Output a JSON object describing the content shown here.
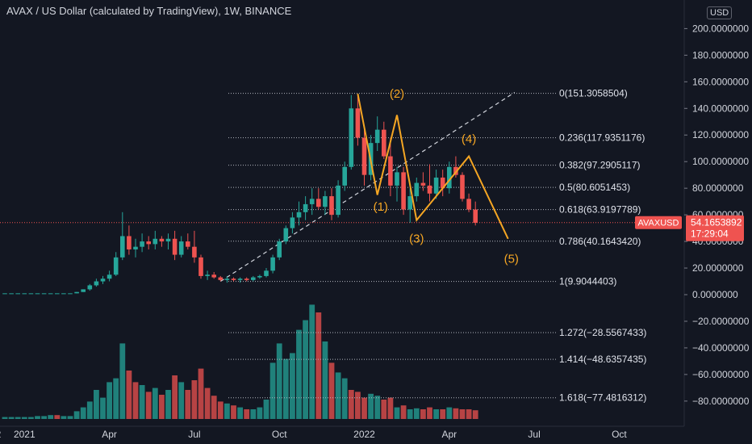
{
  "header": {
    "title": "AVAX / US Dollar (calculated by TradingView), 1W, BINANCE",
    "currency": "USD"
  },
  "price_tag": {
    "symbol": "AVAXUSD",
    "price": "54.1653892",
    "timer": "17:29:04"
  },
  "colors": {
    "bg": "#131722",
    "up": "#26a69a",
    "down": "#ef5350",
    "fib": "#b2b5be",
    "wave": "#f5a623",
    "vol_up": "#26a69a",
    "vol_down": "#ef5350"
  },
  "chart_data": {
    "type": "candlestick",
    "title": "AVAX / US Dollar (calculated by TradingView), 1W, BINANCE",
    "y_ticks": [
      200,
      180,
      160,
      140,
      120,
      100,
      80,
      60,
      40,
      20,
      0,
      -20,
      -40,
      -60,
      -80
    ],
    "y_tick_labels": [
      "200.0000000",
      "180.0000000",
      "160.0000000",
      "140.0000000",
      "120.0000000",
      "100.0000000",
      "80.0000000",
      "60.0000000",
      "40.0000000",
      "20.0000000",
      "0.0000000",
      "−20.0000000",
      "−40.0000000",
      "−60.0000000",
      "−80.0000000"
    ],
    "ylim": [
      -88,
      205
    ],
    "x_ticks": [
      {
        "label": "2",
        "week": -1
      },
      {
        "label": "2021",
        "week": 3
      },
      {
        "label": "Apr",
        "week": 16
      },
      {
        "label": "Jul",
        "week": 29
      },
      {
        "label": "Oct",
        "week": 42
      },
      {
        "label": "2022",
        "week": 55
      },
      {
        "label": "Apr",
        "week": 68
      },
      {
        "label": "Jul",
        "week": 81
      },
      {
        "label": "Oct",
        "week": 94
      }
    ],
    "candles": [
      [
        1,
        1,
        1,
        1
      ],
      [
        1,
        1,
        1,
        1
      ],
      [
        1,
        1,
        1,
        1
      ],
      [
        1,
        1,
        1,
        1
      ],
      [
        1,
        1,
        1,
        1
      ],
      [
        1,
        1,
        1,
        1
      ],
      [
        1,
        1,
        1,
        1
      ],
      [
        1,
        1,
        1,
        1
      ],
      [
        1,
        1,
        1,
        1
      ],
      [
        1,
        1,
        1,
        1
      ],
      [
        1,
        1,
        1,
        1
      ],
      [
        1,
        2,
        1,
        2
      ],
      [
        2,
        4,
        2,
        4
      ],
      [
        4,
        8,
        3,
        7
      ],
      [
        7,
        12,
        6,
        10
      ],
      [
        10,
        14,
        8,
        12
      ],
      [
        12,
        18,
        10,
        15
      ],
      [
        15,
        32,
        14,
        28
      ],
      [
        28,
        62,
        26,
        44
      ],
      [
        44,
        52,
        30,
        34
      ],
      [
        34,
        42,
        28,
        36
      ],
      [
        36,
        46,
        32,
        40
      ],
      [
        40,
        44,
        34,
        38
      ],
      [
        38,
        48,
        34,
        42
      ],
      [
        42,
        44,
        36,
        40
      ],
      [
        40,
        46,
        34,
        42
      ],
      [
        42,
        48,
        26,
        30
      ],
      [
        30,
        44,
        28,
        40
      ],
      [
        40,
        46,
        34,
        36
      ],
      [
        36,
        48,
        24,
        28
      ],
      [
        28,
        30,
        12,
        14
      ],
      [
        14,
        18,
        11,
        15
      ],
      [
        15,
        17,
        12,
        13
      ],
      [
        13,
        14,
        10,
        11
      ],
      [
        11,
        14,
        9,
        12
      ],
      [
        12,
        13,
        10,
        11
      ],
      [
        11,
        13,
        9,
        12
      ],
      [
        12,
        13,
        10,
        11
      ],
      [
        11,
        14,
        10,
        13
      ],
      [
        13,
        15,
        12,
        14
      ],
      [
        14,
        20,
        13,
        18
      ],
      [
        18,
        30,
        16,
        28
      ],
      [
        28,
        42,
        26,
        40
      ],
      [
        40,
        52,
        38,
        50
      ],
      [
        50,
        62,
        46,
        58
      ],
      [
        58,
        70,
        52,
        62
      ],
      [
        62,
        74,
        56,
        68
      ],
      [
        68,
        80,
        60,
        72
      ],
      [
        72,
        80,
        64,
        66
      ],
      [
        66,
        78,
        60,
        74
      ],
      [
        74,
        80,
        56,
        60
      ],
      [
        60,
        86,
        58,
        82
      ],
      [
        82,
        100,
        78,
        96
      ],
      [
        96,
        150,
        94,
        140
      ],
      [
        140,
        150,
        112,
        118
      ],
      [
        118,
        126,
        82,
        90
      ],
      [
        90,
        120,
        86,
        114
      ],
      [
        114,
        134,
        108,
        124
      ],
      [
        124,
        130,
        102,
        104
      ],
      [
        104,
        118,
        74,
        82
      ],
      [
        82,
        96,
        70,
        92
      ],
      [
        92,
        96,
        60,
        64
      ],
      [
        64,
        80,
        54,
        74
      ],
      [
        74,
        88,
        70,
        84
      ],
      [
        84,
        92,
        78,
        82
      ],
      [
        82,
        98,
        70,
        76
      ],
      [
        76,
        94,
        72,
        88
      ],
      [
        88,
        94,
        74,
        80
      ],
      [
        80,
        100,
        76,
        96
      ],
      [
        96,
        104,
        88,
        90
      ],
      [
        90,
        92,
        70,
        72
      ],
      [
        72,
        76,
        62,
        64
      ],
      [
        64,
        70,
        52,
        54
      ]
    ],
    "volume": [
      [
        2,
        "up"
      ],
      [
        2,
        "up"
      ],
      [
        2,
        "up"
      ],
      [
        2,
        "up"
      ],
      [
        2,
        "up"
      ],
      [
        3,
        "up"
      ],
      [
        3,
        "up"
      ],
      [
        4,
        "up"
      ],
      [
        4,
        "down"
      ],
      [
        3,
        "up"
      ],
      [
        3,
        "up"
      ],
      [
        8,
        "up"
      ],
      [
        12,
        "up"
      ],
      [
        18,
        "up"
      ],
      [
        30,
        "up"
      ],
      [
        22,
        "up"
      ],
      [
        38,
        "up"
      ],
      [
        42,
        "up"
      ],
      [
        78,
        "up"
      ],
      [
        50,
        "down"
      ],
      [
        38,
        "down"
      ],
      [
        35,
        "up"
      ],
      [
        28,
        "down"
      ],
      [
        32,
        "up"
      ],
      [
        25,
        "down"
      ],
      [
        30,
        "up"
      ],
      [
        45,
        "down"
      ],
      [
        38,
        "up"
      ],
      [
        30,
        "down"
      ],
      [
        40,
        "down"
      ],
      [
        52,
        "down"
      ],
      [
        32,
        "down"
      ],
      [
        24,
        "down"
      ],
      [
        18,
        "down"
      ],
      [
        16,
        "up"
      ],
      [
        14,
        "down"
      ],
      [
        12,
        "up"
      ],
      [
        10,
        "down"
      ],
      [
        10,
        "up"
      ],
      [
        12,
        "up"
      ],
      [
        20,
        "up"
      ],
      [
        58,
        "up"
      ],
      [
        78,
        "up"
      ],
      [
        62,
        "up"
      ],
      [
        68,
        "up"
      ],
      [
        92,
        "up"
      ],
      [
        102,
        "up"
      ],
      [
        118,
        "up"
      ],
      [
        110,
        "down"
      ],
      [
        80,
        "up"
      ],
      [
        58,
        "down"
      ],
      [
        48,
        "up"
      ],
      [
        42,
        "up"
      ],
      [
        30,
        "down"
      ],
      [
        28,
        "down"
      ],
      [
        22,
        "down"
      ],
      [
        26,
        "up"
      ],
      [
        24,
        "up"
      ],
      [
        20,
        "down"
      ],
      [
        22,
        "down"
      ],
      [
        12,
        "up"
      ],
      [
        14,
        "down"
      ],
      [
        10,
        "up"
      ],
      [
        11,
        "up"
      ],
      [
        10,
        "down"
      ],
      [
        12,
        "down"
      ],
      [
        10,
        "up"
      ],
      [
        10,
        "down"
      ],
      [
        12,
        "up"
      ],
      [
        11,
        "down"
      ],
      [
        10,
        "down"
      ],
      [
        10,
        "down"
      ],
      [
        9,
        "down"
      ]
    ],
    "fib_levels": [
      {
        "price": 151.3058504,
        "label": "0(151.3058504)"
      },
      {
        "price": 117.9351176,
        "label": "0.236(117.9351176)"
      },
      {
        "price": 97.2905117,
        "label": "0.382(97.2905117)"
      },
      {
        "price": 80.6051453,
        "label": "0.5(80.6051453)"
      },
      {
        "price": 63.9197789,
        "label": "0.618(63.9197789)"
      },
      {
        "price": 40.164342,
        "label": "0.786(40.1643420)"
      },
      {
        "price": 9.9044403,
        "label": "1(9.9044403)"
      },
      {
        "price": -28.5567433,
        "label": "1.272(−28.5567433)"
      },
      {
        "price": -48.6357435,
        "label": "1.414(−48.6357435)"
      },
      {
        "price": -77.4816312,
        "label": "1.618(−77.4816312)"
      }
    ],
    "trendline": [
      {
        "week": 33,
        "price": 10
      },
      {
        "week": 78,
        "price": 152
      }
    ],
    "elliott_wave": [
      {
        "week": 54,
        "price": 151
      },
      {
        "week": 57,
        "price": 75
      },
      {
        "week": 60,
        "price": 135
      },
      {
        "week": 63,
        "price": 56
      },
      {
        "week": 71,
        "price": 104
      },
      {
        "week": 77,
        "price": 42
      }
    ],
    "wave_labels": [
      {
        "text": "(1)",
        "week": 57.5,
        "price": 63
      },
      {
        "text": "(2)",
        "week": 60,
        "price": 148
      },
      {
        "text": "(3)",
        "week": 63,
        "price": 39
      },
      {
        "text": "(4)",
        "week": 71,
        "price": 114
      },
      {
        "text": "(5)",
        "week": 77.5,
        "price": 24
      }
    ],
    "current_price": 54.1653892
  }
}
